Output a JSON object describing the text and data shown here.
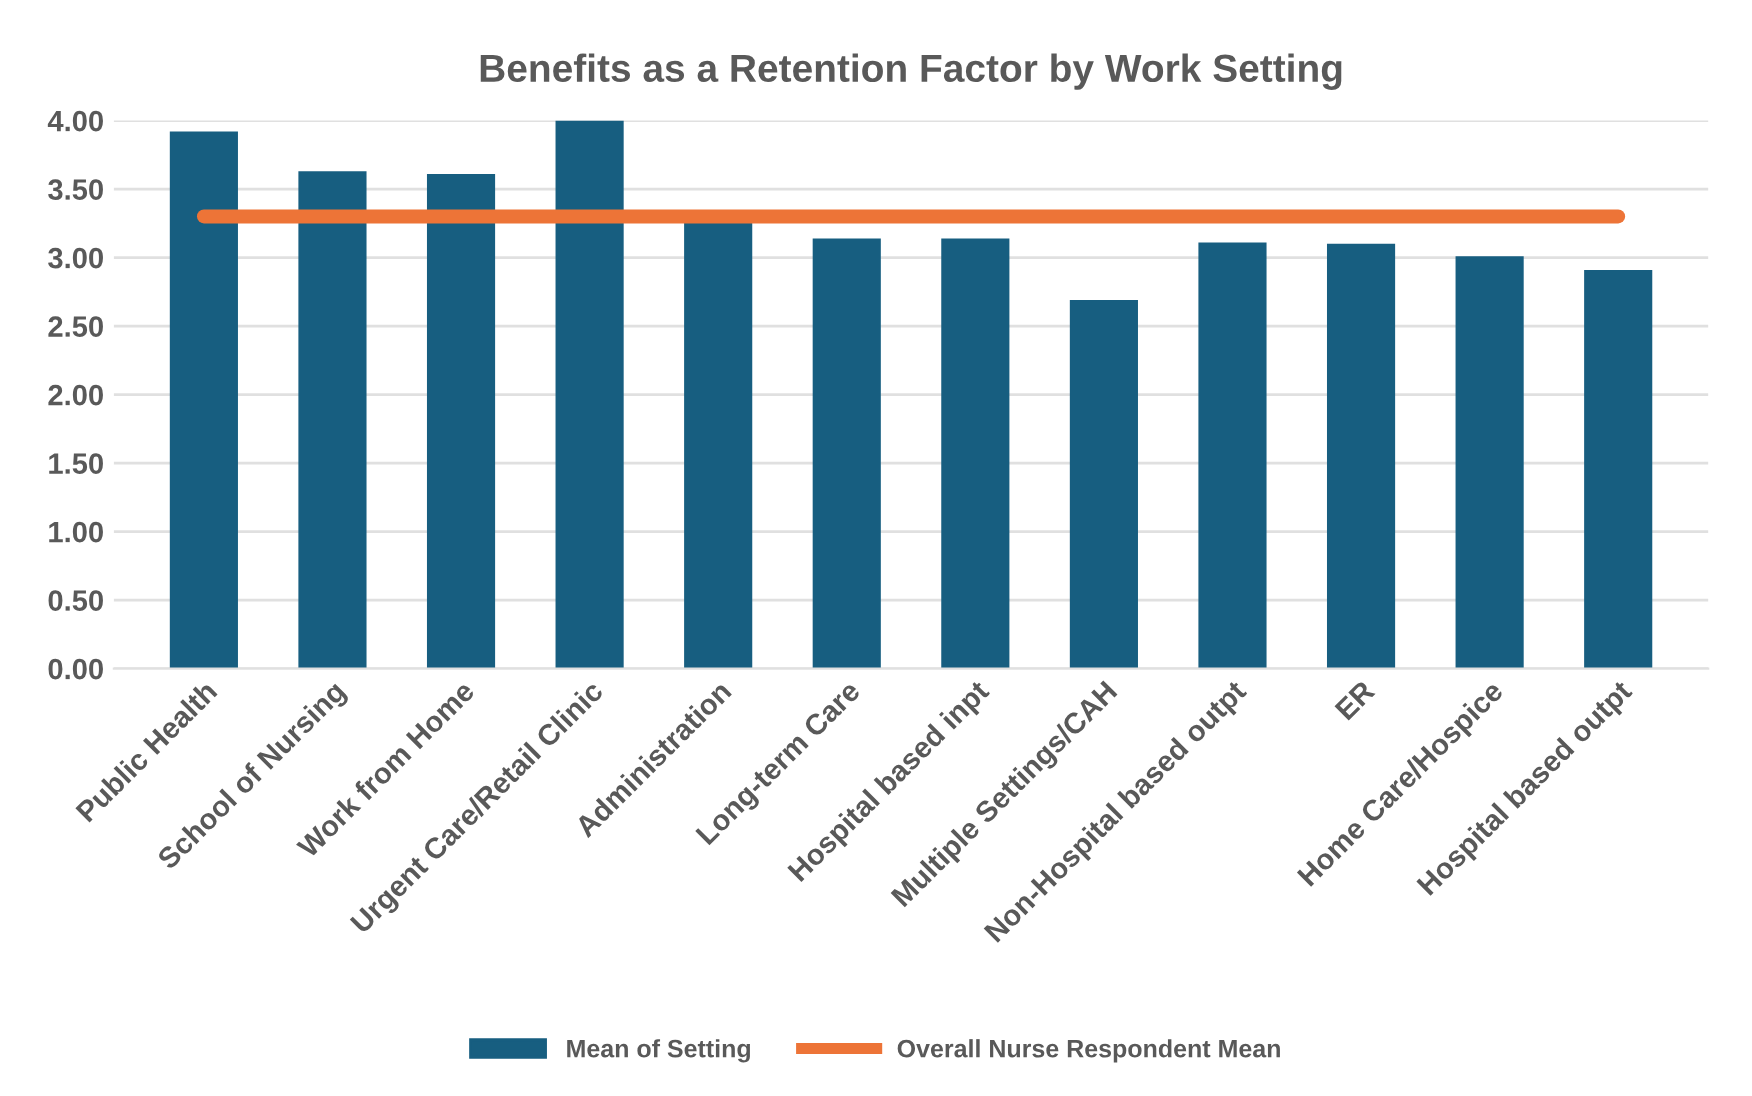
{
  "chart_data": {
    "type": "bar",
    "title": "Benefits as a Retention Factor by Work Setting",
    "categories": [
      "Public Health",
      "School of Nursing",
      "Work from Home",
      "Urgent Care/Retail Clinic",
      "Administration",
      "Long-term Care",
      "Hospital based inpt",
      "Multiple Settings/CAH",
      "Non-Hospital based outpt",
      "ER",
      "Home Care/Hospice",
      "Hospital based outpt"
    ],
    "series": [
      {
        "name": "Mean of Setting",
        "color": "#175e80",
        "values": [
          3.92,
          3.63,
          3.61,
          4.0,
          3.27,
          3.14,
          3.14,
          2.69,
          3.11,
          3.1,
          3.01,
          2.91
        ]
      },
      {
        "name": "Overall Nurse Respondent Mean",
        "type": "line",
        "color": "#ed7437",
        "values": [
          3.3,
          3.3,
          3.3,
          3.3,
          3.3,
          3.3,
          3.3,
          3.3,
          3.3,
          3.3,
          3.3,
          3.3
        ]
      }
    ],
    "ylim": [
      0,
      4.0
    ],
    "yticks": [
      {
        "value": 0,
        "label": "0.00"
      },
      {
        "value": 0.5,
        "label": "0.50"
      },
      {
        "value": 1.0,
        "label": "1.00"
      },
      {
        "value": 1.5,
        "label": "1.50"
      },
      {
        "value": 2.0,
        "label": "2.00"
      },
      {
        "value": 2.5,
        "label": "2.50"
      },
      {
        "value": 3.0,
        "label": "3.00"
      },
      {
        "value": 3.5,
        "label": "3.50"
      },
      {
        "value": 4.0,
        "label": "4.00"
      }
    ],
    "grid": "y",
    "legend": "bottom",
    "marker": "none",
    "line_style": "solid"
  }
}
